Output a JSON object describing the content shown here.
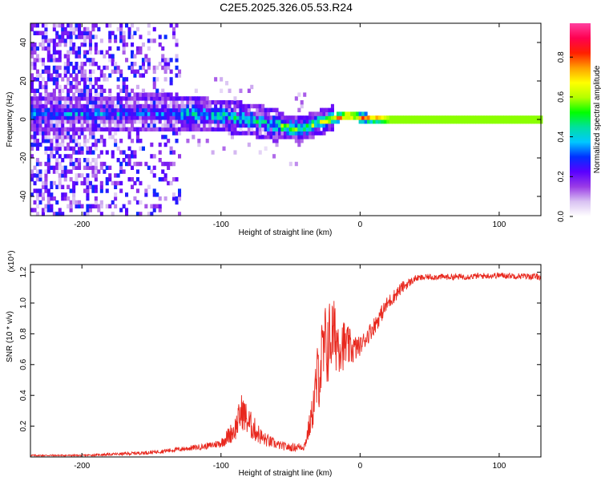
{
  "title": "C2E5.2025.326.05.53.R24",
  "chart_data": [
    {
      "type": "heatmap",
      "xlabel": "Height of straight line (km)",
      "ylabel": "Frequency (Hz)",
      "xlim": [
        -237,
        130
      ],
      "ylim": [
        -50,
        50
      ],
      "xticks": [
        -200,
        -100,
        0,
        100
      ],
      "yticks": [
        -40,
        -20,
        0,
        20,
        40
      ],
      "colorbar": {
        "label": "Normalized spectral amplitude",
        "range": [
          0.0,
          0.97
        ],
        "ticks": [
          0.0,
          0.2,
          0.4,
          0.6,
          0.8
        ],
        "colors": [
          "#ffffff",
          "#d9c2f2",
          "#9a3ce6",
          "#5a00ff",
          "#0030ff",
          "#00c8ff",
          "#00e0a0",
          "#00ff00",
          "#b4ff00",
          "#ffff00",
          "#ffa000",
          "#ff2000",
          "#ff0050",
          "#ff40a0"
        ]
      },
      "ridge": {
        "x": [
          -237,
          -180,
          -150,
          -120,
          -100,
          -80,
          -60,
          -45,
          -35,
          -25,
          -10,
          0,
          20,
          130
        ],
        "freq": [
          3,
          3,
          4,
          3,
          2,
          0,
          -3,
          -5,
          -3,
          0,
          2,
          1,
          0,
          0
        ]
      },
      "x_break_km": -130
    },
    {
      "type": "line",
      "xlabel": "Height of straight line (km)",
      "ylabel": "SNR (10 * v/v)",
      "scale_label": "(x10⁴)",
      "xlim": [
        -237,
        130
      ],
      "ylim": [
        0,
        1.25
      ],
      "xticks": [
        -200,
        -100,
        0,
        100
      ],
      "yticks": [
        0.2,
        0.4,
        0.6,
        0.8,
        1.0,
        1.2
      ],
      "ytick_labels": [
        "0.2",
        "0.4",
        "0.6",
        "0.8",
        "1.0",
        "1.2"
      ],
      "color": "#e8281e",
      "series": [
        {
          "name": "SNR",
          "x": [
            -237,
            -200,
            -170,
            -150,
            -130,
            -110,
            -100,
            -90,
            -85,
            -80,
            -70,
            -60,
            -50,
            -40,
            -35,
            -30,
            -25,
            -20,
            -15,
            -10,
            -5,
            0,
            10,
            20,
            30,
            40,
            50,
            70,
            100,
            130
          ],
          "y": [
            0.01,
            0.01,
            0.02,
            0.03,
            0.05,
            0.07,
            0.09,
            0.18,
            0.3,
            0.22,
            0.12,
            0.08,
            0.06,
            0.07,
            0.25,
            0.55,
            0.7,
            0.8,
            0.75,
            0.72,
            0.7,
            0.72,
            0.85,
            1.0,
            1.1,
            1.16,
            1.17,
            1.17,
            1.18,
            1.17
          ],
          "noise": [
            0.005,
            0.005,
            0.01,
            0.012,
            0.015,
            0.02,
            0.03,
            0.08,
            0.12,
            0.1,
            0.05,
            0.03,
            0.025,
            0.03,
            0.1,
            0.25,
            0.3,
            0.25,
            0.2,
            0.15,
            0.1,
            0.06,
            0.06,
            0.05,
            0.04,
            0.02,
            0.02,
            0.02,
            0.02,
            0.02
          ]
        }
      ]
    }
  ]
}
